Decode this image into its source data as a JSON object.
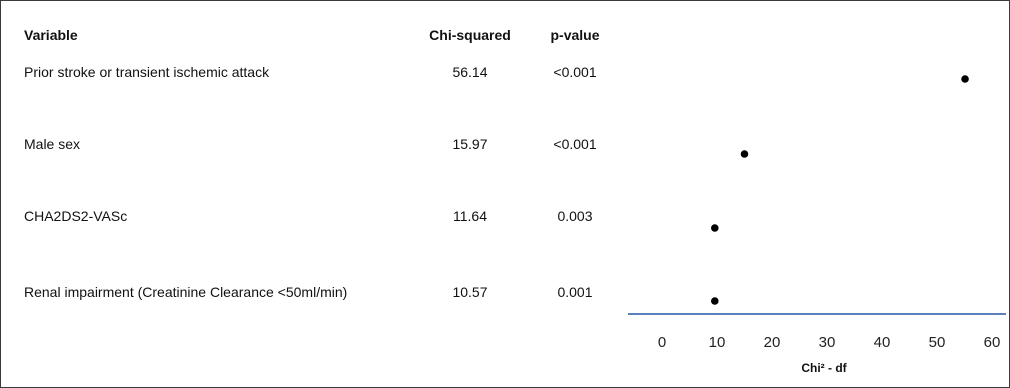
{
  "table": {
    "headers": {
      "variable": "Variable",
      "chi": "Chi-squared",
      "p": "p-value"
    },
    "rows": [
      {
        "variable": "Prior stroke or transient ischemic attack",
        "chi": "56.14",
        "p": "<0.001"
      },
      {
        "variable": "Male sex",
        "chi": "15.97",
        "p": "<0.001"
      },
      {
        "variable": "CHA2DS2-VASc",
        "chi": "11.64",
        "p": "0.003"
      },
      {
        "variable": "Renal impairment (Creatinine Clearance <50ml/min)",
        "chi": "10.57",
        "p": "0.001"
      }
    ]
  },
  "chart_data": {
    "type": "scatter",
    "xlabel": "Chi² - df",
    "xlim": [
      0,
      60
    ],
    "xticks": [
      "0",
      "10",
      "20",
      "30",
      "40",
      "50",
      "60"
    ],
    "categories": [
      "Prior stroke or transient ischemic attack",
      "Male sex",
      "CHA2DS2-VASc",
      "Renal impairment (Creatinine Clearance <50ml/min)"
    ],
    "x": [
      55.1,
      15.0,
      9.6,
      9.6
    ],
    "axis_color": "#5b7fbf",
    "point_color": "#000000"
  }
}
